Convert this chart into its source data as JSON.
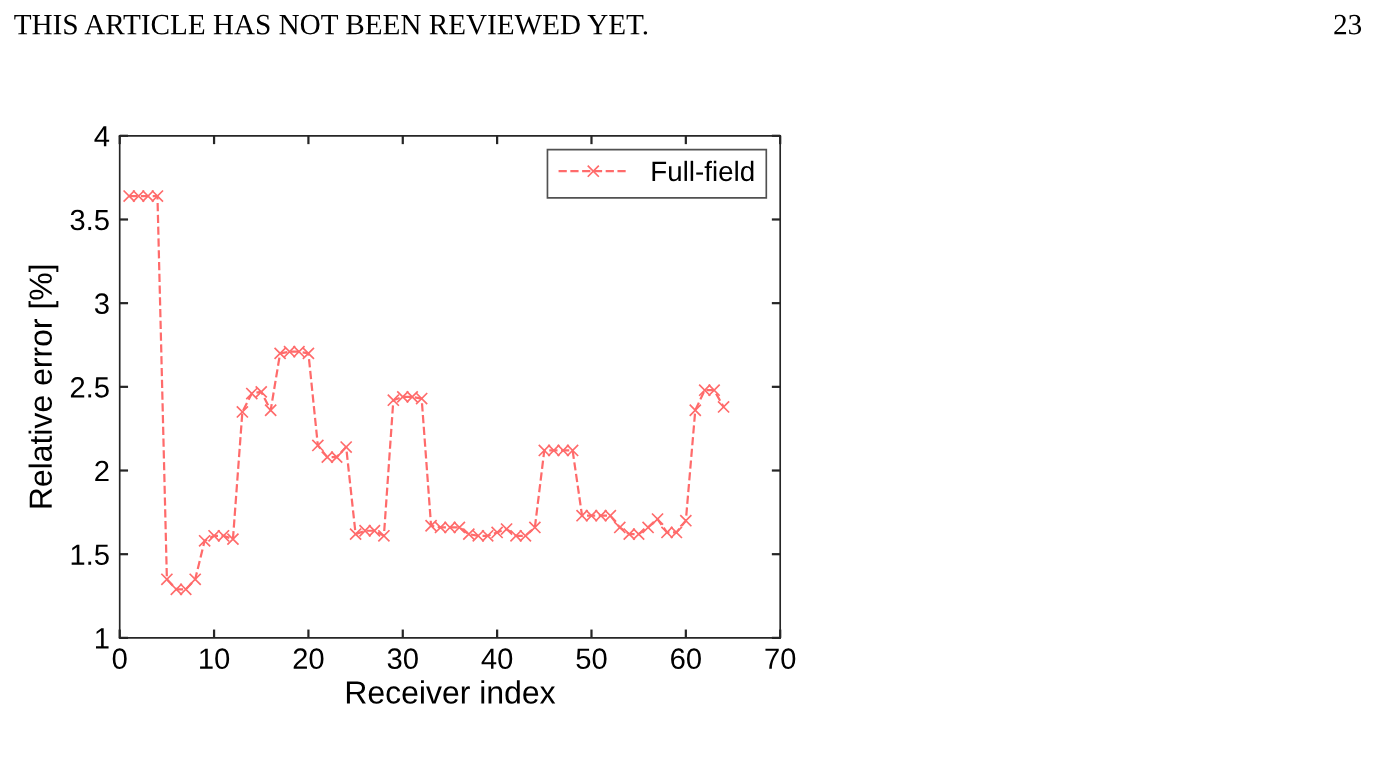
{
  "chart_data": {
    "type": "line",
    "xlabel": "Receiver index",
    "ylabel": "Relative error [%]",
    "annotations": [
      "THIS ARTICLE HAS NOT BEEN REVIEWED YET.",
      "23"
    ],
    "x": [
      1,
      2,
      3,
      4,
      5,
      6,
      7,
      8,
      9,
      10,
      11,
      12,
      13,
      14,
      15,
      16,
      17,
      18,
      19,
      20,
      21,
      22,
      23,
      24,
      25,
      26,
      27,
      28,
      29,
      30,
      31,
      32,
      33,
      34,
      35,
      36,
      37,
      38,
      39,
      40,
      41,
      42,
      43,
      44,
      45,
      46,
      47,
      48,
      49,
      50,
      51,
      52,
      53,
      54,
      55,
      56,
      57,
      58,
      59,
      60,
      61,
      62,
      63,
      64
    ],
    "series": [
      {
        "name": "Full-field",
        "color": "#ff6b6b",
        "values": [
          3.64,
          3.64,
          3.64,
          3.64,
          1.35,
          1.29,
          1.29,
          1.35,
          1.58,
          1.61,
          1.61,
          1.59,
          2.35,
          2.46,
          2.47,
          2.36,
          2.7,
          2.71,
          2.71,
          2.7,
          2.15,
          2.08,
          2.08,
          2.14,
          1.62,
          1.64,
          1.64,
          1.61,
          2.42,
          2.44,
          2.44,
          2.43,
          1.67,
          1.66,
          1.66,
          1.66,
          1.62,
          1.61,
          1.61,
          1.63,
          1.65,
          1.61,
          1.61,
          1.66,
          2.12,
          2.12,
          2.12,
          2.12,
          1.73,
          1.73,
          1.73,
          1.73,
          1.66,
          1.62,
          1.62,
          1.66,
          1.71,
          1.63,
          1.63,
          1.7,
          2.36,
          2.48,
          2.48,
          2.38
        ]
      }
    ],
    "xlim": [
      0,
      70
    ],
    "ylim": [
      1,
      4
    ],
    "xticks": [
      0,
      10,
      20,
      30,
      40,
      50,
      60,
      70
    ],
    "yticks": [
      1,
      1.5,
      2,
      2.5,
      3,
      3.5,
      4
    ],
    "marker": "cross",
    "line_style": "dashed",
    "legend": "top right",
    "grid": false
  }
}
